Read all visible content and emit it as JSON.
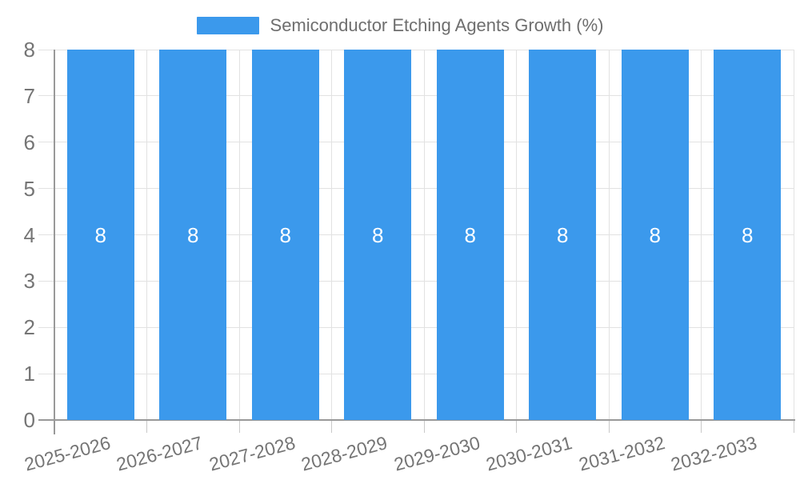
{
  "chart_data": {
    "type": "bar",
    "title": "",
    "legend": {
      "label": "Semiconductor Etching Agents Growth (%)",
      "position": "top"
    },
    "categories": [
      "2025-2026",
      "2026-2027",
      "2027-2028",
      "2028-2029",
      "2029-2030",
      "2030-2031",
      "2031-2032",
      "2032-2033"
    ],
    "series": [
      {
        "name": "Semiconductor Etching Agents Growth (%)",
        "values": [
          8,
          8,
          8,
          8,
          8,
          8,
          8,
          8
        ]
      }
    ],
    "xlabel": "",
    "ylabel": "",
    "ylim": [
      0,
      8
    ],
    "yticks": [
      0,
      1,
      2,
      3,
      4,
      5,
      6,
      7,
      8
    ],
    "grid": true,
    "value_labels_shown": true,
    "colors": {
      "bar": "#3b99ec",
      "axis": "#999999",
      "gridline": "#e2e2e2",
      "tick": "#c9c9c9",
      "axis_text": "#757575",
      "legend_text": "#6e6e6e",
      "value_label_text": "#ffffff",
      "background": "#ffffff"
    }
  }
}
